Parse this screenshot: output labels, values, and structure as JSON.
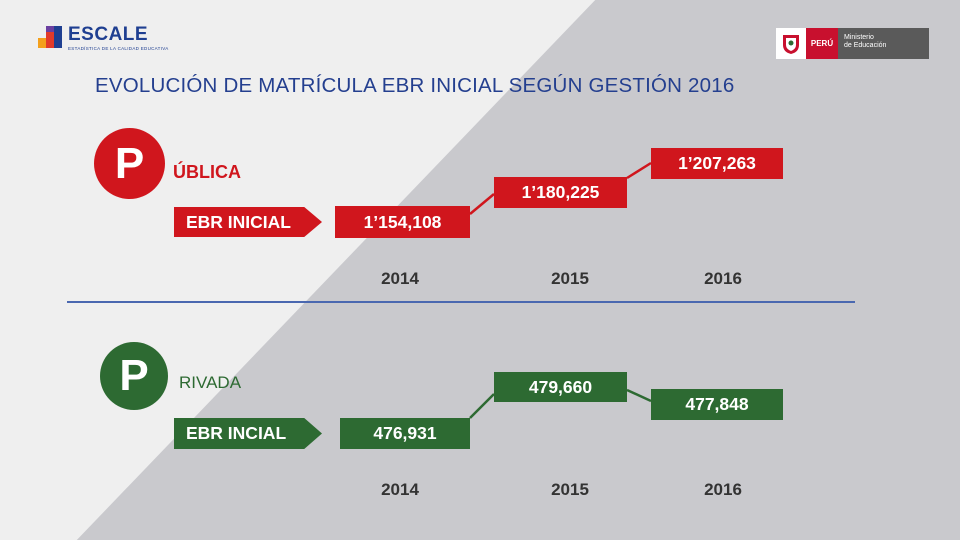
{
  "header": {
    "logo_text": "ESCALE",
    "logo_subtext": "ESTADÍSTICA DE LA CALIDAD EDUCATIVA",
    "ministry_country": "PERÚ",
    "ministry_name_line1": "Ministerio",
    "ministry_name_line2": "de Educación"
  },
  "chart_data": {
    "type": "line",
    "title": "EVOLUCIÓN DE MATRÍCULA EBR INICIAL SEGÚN GESTIÓN 2016",
    "categories": [
      "2014",
      "2015",
      "2016"
    ],
    "panels": [
      {
        "key": "publica",
        "initial": "P",
        "label_rest": "ÚBLICA",
        "series_label": "EBR INICIAL",
        "value_labels": [
          "1’154,108",
          "1’180,225",
          "1’207,263"
        ],
        "values": [
          1154108,
          1180225,
          1207263
        ],
        "color": "#d0161d"
      },
      {
        "key": "privada",
        "initial": "P",
        "label_rest": "RIVADA",
        "series_label": "EBR INCIAL",
        "value_labels": [
          "476,931",
          "479,660",
          "477,848"
        ],
        "values": [
          476931,
          479660,
          477848
        ],
        "color": "#2d6a32"
      }
    ]
  }
}
